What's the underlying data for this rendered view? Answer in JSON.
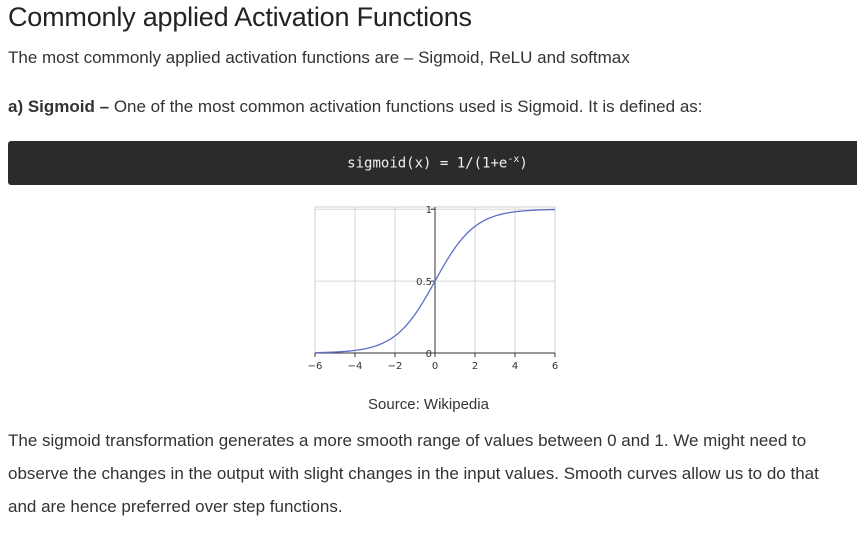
{
  "heading": "Commonly applied Activation Functions",
  "intro": "The most commonly applied activation functions are – Sigmoid, ReLU and softmax",
  "sigmoid_section": {
    "label": "a) Sigmoid –",
    "text": "One of the most common activation functions used is Sigmoid. It is defined as:"
  },
  "code": {
    "before_sup": "sigmoid(x) = 1/(1+e",
    "sup": "-x",
    "after_sup": ")"
  },
  "chart_data": {
    "type": "line",
    "series": [
      {
        "x": [
          -6,
          -5,
          -4,
          -3,
          -2,
          -1,
          0,
          1,
          2,
          3,
          4,
          5,
          6
        ],
        "y": [
          0.0025,
          0.0067,
          0.018,
          0.047,
          0.119,
          0.269,
          0.5,
          0.731,
          0.881,
          0.953,
          0.982,
          0.993,
          0.9975
        ],
        "color": "#5a6fc4"
      }
    ],
    "xlim": [
      -6,
      6
    ],
    "ylim": [
      0,
      1
    ],
    "xticks": [
      "−6",
      "−4",
      "−2",
      "0",
      "2",
      "4",
      "6"
    ],
    "xtick_values": [
      -6,
      -4,
      -2,
      0,
      2,
      4,
      6
    ],
    "yticks": [
      "0",
      "0.5",
      "1"
    ],
    "ytick_values": [
      0,
      0.5,
      1
    ],
    "grid": true
  },
  "caption": "Source: Wikipedia",
  "paragraph": {
    "line1": "The sigmoid transformation generates a more smooth range of values between 0 and 1. We might need to",
    "line2": "observe the changes in the output with slight changes in the input values. Smooth curves allow us to do that",
    "line3": "and are hence preferred over step functions."
  }
}
